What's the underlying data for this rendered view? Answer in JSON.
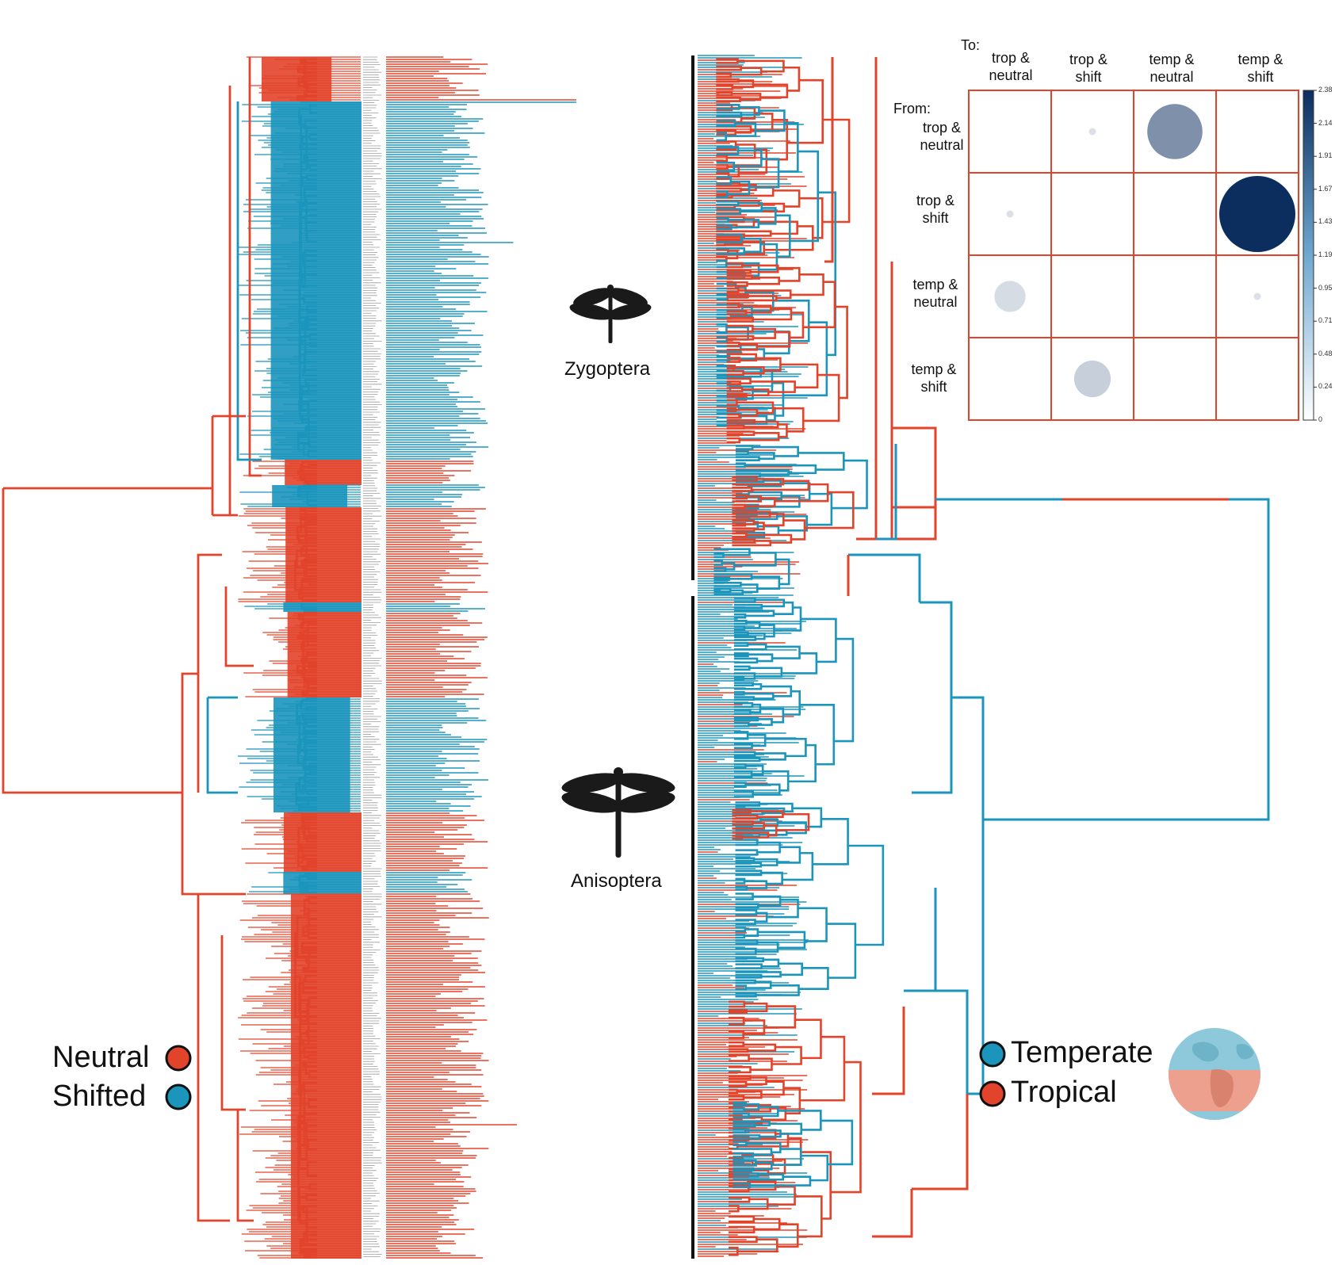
{
  "colors": {
    "neutral": "#E2432B",
    "shifted": "#1B95BC",
    "tropical": "#E2432B",
    "temperate": "#1B95BC",
    "matrix_grid": "#E2432B",
    "colorbar_high": "#0B2E5E",
    "colorbar_low": "#FFFFFF",
    "silhouette": "#1a1a1a"
  },
  "clades": {
    "zygoptera": "Zygoptera",
    "anisoptera": "Anisoptera"
  },
  "legend_left": {
    "neutral": "Neutral",
    "shifted": "Shifted"
  },
  "legend_right": {
    "temperate": "Temperate",
    "tropical": "Tropical"
  },
  "icons": {
    "damselfly": "damselfly-icon",
    "dragonfly": "dragonfly-icon",
    "globe": "globe-icon"
  },
  "matrix": {
    "to_label": "To:",
    "from_label": "From:",
    "columns": [
      {
        "line1": "trop &",
        "line2": "neutral"
      },
      {
        "line1": "trop &",
        "line2": "shift"
      },
      {
        "line1": "temp &",
        "line2": "neutral"
      },
      {
        "line1": "temp &",
        "line2": "shift"
      }
    ],
    "rows": [
      {
        "line1": "trop &",
        "line2": "neutral"
      },
      {
        "line1": "trop &",
        "line2": "shift"
      },
      {
        "line1": "temp &",
        "line2": "neutral"
      },
      {
        "line1": "temp &",
        "line2": "shift"
      }
    ],
    "values": [
      [
        0,
        0.02,
        1.25,
        0
      ],
      [
        0.02,
        0,
        0,
        2.38
      ],
      [
        0.4,
        0,
        0,
        0.02
      ],
      [
        0,
        0.55,
        0,
        0
      ]
    ],
    "colorbar_ticks": [
      "2.38",
      "2.14",
      "1.91",
      "1.67",
      "1.43",
      "1.19",
      "0.95",
      "0.71",
      "0.48",
      "0.24",
      "0"
    ],
    "max": 2.38
  }
}
